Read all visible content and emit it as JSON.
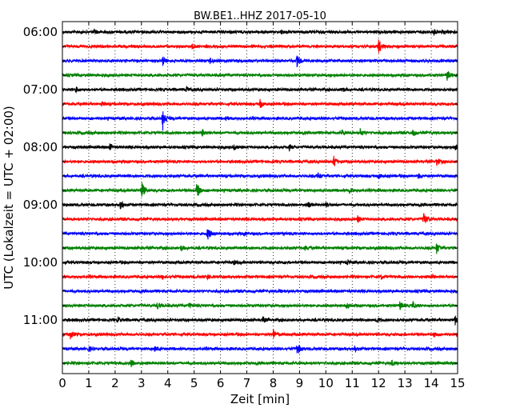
{
  "chart_data": {
    "type": "line",
    "title": "BW.BE1..HHZ 2017-05-10",
    "xlabel": "Zeit  [min]",
    "ylabel": "UTC (Lokalzeit = UTC + 02:00)",
    "xlim": [
      0,
      15
    ],
    "x_ticks": [
      "0",
      "1",
      "2",
      "3",
      "4",
      "5",
      "6",
      "7",
      "8",
      "9",
      "10",
      "11",
      "12",
      "13",
      "14",
      "15"
    ],
    "y_tick_labels": [
      "06:00",
      "07:00",
      "08:00",
      "09:00",
      "10:00",
      "11:00"
    ],
    "grid": "vertical dotted at each minute",
    "color_cycle": [
      "#000000",
      "#ff0000",
      "#0000ff",
      "#008000"
    ],
    "series": [
      {
        "start": "06:00",
        "color": "#000000",
        "events": [
          {
            "t": 1.2,
            "amp": 0.15
          },
          {
            "t": 8.3,
            "amp": 0.12
          },
          {
            "t": 14.1,
            "amp": 0.15
          },
          {
            "t": 14.4,
            "amp": 0.12
          }
        ]
      },
      {
        "start": "06:15",
        "color": "#ff0000",
        "events": [
          {
            "t": 4.9,
            "amp": 0.2
          },
          {
            "t": 12.0,
            "amp": 0.55
          }
        ]
      },
      {
        "start": "06:30",
        "color": "#0000ff",
        "events": [
          {
            "t": 3.8,
            "amp": 0.35
          },
          {
            "t": 5.6,
            "amp": 0.2
          },
          {
            "t": 8.9,
            "amp": 0.4
          }
        ]
      },
      {
        "start": "06:45",
        "color": "#008000",
        "events": [
          {
            "t": 14.6,
            "amp": 0.35
          }
        ]
      },
      {
        "start": "07:00",
        "color": "#000000",
        "events": [
          {
            "t": 0.5,
            "amp": 0.2
          },
          {
            "t": 4.7,
            "amp": 0.2
          },
          {
            "t": 10.6,
            "amp": 0.2
          }
        ]
      },
      {
        "start": "07:15",
        "color": "#ff0000",
        "events": [
          {
            "t": 1.5,
            "amp": 0.12
          },
          {
            "t": 7.5,
            "amp": 0.3
          },
          {
            "t": 15.0,
            "amp": 0.15
          }
        ]
      },
      {
        "start": "07:30",
        "color": "#0000ff",
        "events": [
          {
            "t": 3.8,
            "amp": 0.9
          },
          {
            "t": 6.2,
            "amp": 0.15
          }
        ]
      },
      {
        "start": "07:45",
        "color": "#008000",
        "events": [
          {
            "t": 5.3,
            "amp": 0.25
          },
          {
            "t": 10.6,
            "amp": 0.2
          },
          {
            "t": 11.3,
            "amp": 0.25
          },
          {
            "t": 13.3,
            "amp": 0.2
          }
        ]
      },
      {
        "start": "08:00",
        "color": "#000000",
        "events": [
          {
            "t": 1.8,
            "amp": 0.2
          },
          {
            "t": 6.5,
            "amp": 0.2
          },
          {
            "t": 8.6,
            "amp": 0.2
          },
          {
            "t": 14.9,
            "amp": 0.2
          }
        ]
      },
      {
        "start": "08:15",
        "color": "#ff0000",
        "events": [
          {
            "t": 10.3,
            "amp": 0.45
          },
          {
            "t": 14.2,
            "amp": 0.3
          }
        ]
      },
      {
        "start": "08:30",
        "color": "#0000ff",
        "events": [
          {
            "t": 9.7,
            "amp": 0.2
          },
          {
            "t": 12.0,
            "amp": 0.2
          },
          {
            "t": 13.5,
            "amp": 0.15
          }
        ]
      },
      {
        "start": "08:45",
        "color": "#008000",
        "events": [
          {
            "t": 3.0,
            "amp": 0.65
          },
          {
            "t": 5.1,
            "amp": 0.6
          },
          {
            "t": 10.9,
            "amp": 0.2
          }
        ]
      },
      {
        "start": "09:00",
        "color": "#000000",
        "events": [
          {
            "t": 2.2,
            "amp": 0.25
          },
          {
            "t": 9.3,
            "amp": 0.2
          },
          {
            "t": 10.0,
            "amp": 0.15
          }
        ]
      },
      {
        "start": "09:15",
        "color": "#ff0000",
        "events": [
          {
            "t": 11.2,
            "amp": 0.2
          },
          {
            "t": 13.7,
            "amp": 0.55
          }
        ]
      },
      {
        "start": "09:30",
        "color": "#0000ff",
        "events": [
          {
            "t": 5.5,
            "amp": 0.45
          },
          {
            "t": 6.9,
            "amp": 0.12
          }
        ]
      },
      {
        "start": "09:45",
        "color": "#008000",
        "events": [
          {
            "t": 4.5,
            "amp": 0.2
          },
          {
            "t": 9.2,
            "amp": 0.15
          },
          {
            "t": 14.2,
            "amp": 0.4
          }
        ]
      },
      {
        "start": "10:00",
        "color": "#000000",
        "events": [
          {
            "t": 6.5,
            "amp": 0.15
          },
          {
            "t": 10.8,
            "amp": 0.15
          }
        ]
      },
      {
        "start": "10:15",
        "color": "#ff0000",
        "events": [
          {
            "t": 3.8,
            "amp": 0.15
          },
          {
            "t": 5.5,
            "amp": 0.15
          },
          {
            "t": 12.1,
            "amp": 0.12
          },
          {
            "t": 14.0,
            "amp": 0.15
          }
        ]
      },
      {
        "start": "10:30",
        "color": "#0000ff",
        "events": [
          {
            "t": 8.2,
            "amp": 0.12
          }
        ]
      },
      {
        "start": "10:45",
        "color": "#008000",
        "events": [
          {
            "t": 3.6,
            "amp": 0.25
          },
          {
            "t": 4.8,
            "amp": 0.2
          },
          {
            "t": 10.8,
            "amp": 0.2
          },
          {
            "t": 12.8,
            "amp": 0.3
          },
          {
            "t": 13.3,
            "amp": 0.25
          }
        ]
      },
      {
        "start": "11:00",
        "color": "#000000",
        "events": [
          {
            "t": 2.1,
            "amp": 0.15
          },
          {
            "t": 7.6,
            "amp": 0.2
          },
          {
            "t": 11.9,
            "amp": 0.2
          },
          {
            "t": 14.9,
            "amp": 0.35
          }
        ]
      },
      {
        "start": "11:15",
        "color": "#ff0000",
        "events": [
          {
            "t": 0.3,
            "amp": 0.3
          },
          {
            "t": 8.0,
            "amp": 0.35
          },
          {
            "t": 14.1,
            "amp": 0.2
          }
        ]
      },
      {
        "start": "11:30",
        "color": "#0000ff",
        "events": [
          {
            "t": 1.0,
            "amp": 0.15
          },
          {
            "t": 3.5,
            "amp": 0.15
          },
          {
            "t": 8.9,
            "amp": 0.45
          },
          {
            "t": 11.1,
            "amp": 0.15
          }
        ]
      },
      {
        "start": "11:45",
        "color": "#008000",
        "events": [
          {
            "t": 2.6,
            "amp": 0.25
          },
          {
            "t": 12.5,
            "amp": 0.2
          }
        ]
      }
    ]
  }
}
